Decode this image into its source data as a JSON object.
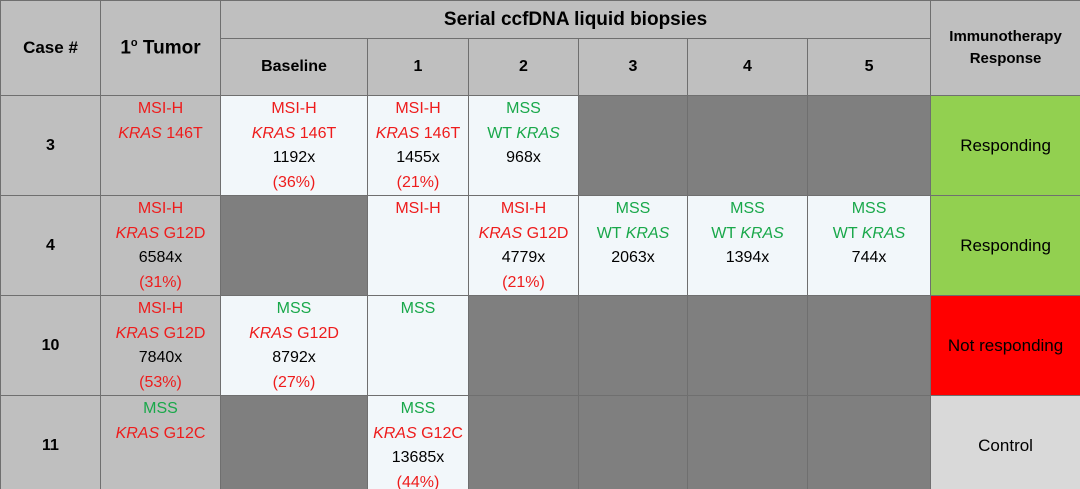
{
  "header": {
    "case": "Case #",
    "tumor": [
      {
        "text": "1"
      },
      {
        "text": "o",
        "sup": true
      },
      {
        "text": " Tumor"
      }
    ],
    "serial": "Serial ccfDNA liquid biopsies",
    "timepoints": [
      "Baseline",
      "1",
      "2",
      "3",
      "4",
      "5"
    ],
    "response": [
      "Immunotherapy",
      "Response"
    ]
  },
  "rows": [
    {
      "case": "3",
      "cells": [
        [
          {
            "color": "red",
            "parts": [
              {
                "text": "MSI-H"
              }
            ]
          },
          {
            "color": "red",
            "parts": [
              {
                "text": "KRAS",
                "italic": true
              },
              {
                "text": " 146T"
              }
            ]
          }
        ],
        [
          {
            "color": "red",
            "parts": [
              {
                "text": "MSI-H"
              }
            ]
          },
          {
            "color": "red",
            "parts": [
              {
                "text": "KRAS",
                "italic": true
              },
              {
                "text": " 146T"
              }
            ]
          },
          {
            "color": "black",
            "parts": [
              {
                "text": "1192x"
              }
            ]
          },
          {
            "color": "red",
            "parts": [
              {
                "text": "(36%)"
              }
            ]
          }
        ],
        [
          {
            "color": "red",
            "parts": [
              {
                "text": "MSI-H"
              }
            ]
          },
          {
            "color": "red",
            "parts": [
              {
                "text": "KRAS",
                "italic": true
              },
              {
                "text": " 146T"
              }
            ]
          },
          {
            "color": "black",
            "parts": [
              {
                "text": "1455x"
              }
            ]
          },
          {
            "color": "red",
            "parts": [
              {
                "text": "(21%)"
              }
            ]
          }
        ],
        [
          {
            "color": "green",
            "parts": [
              {
                "text": "MSS"
              }
            ]
          },
          {
            "color": "green",
            "parts": [
              {
                "text": "WT "
              },
              {
                "text": "KRAS",
                "italic": true
              }
            ]
          },
          {
            "color": "black",
            "parts": [
              {
                "text": "968x"
              }
            ]
          }
        ],
        null,
        null,
        null
      ],
      "response": {
        "text": "Responding",
        "color": "#92d050"
      }
    },
    {
      "case": "4",
      "cells": [
        [
          {
            "color": "red",
            "parts": [
              {
                "text": "MSI-H"
              }
            ]
          },
          {
            "color": "red",
            "parts": [
              {
                "text": "KRAS",
                "italic": true
              },
              {
                "text": " G12D"
              }
            ]
          },
          {
            "color": "black",
            "parts": [
              {
                "text": "6584x"
              }
            ]
          },
          {
            "color": "red",
            "parts": [
              {
                "text": "(31%)"
              }
            ]
          }
        ],
        null,
        [
          {
            "color": "red",
            "parts": [
              {
                "text": "MSI-H"
              }
            ]
          }
        ],
        [
          {
            "color": "red",
            "parts": [
              {
                "text": "MSI-H"
              }
            ]
          },
          {
            "color": "red",
            "parts": [
              {
                "text": "KRAS",
                "italic": true
              },
              {
                "text": " G12D"
              }
            ]
          },
          {
            "color": "black",
            "parts": [
              {
                "text": "4779x"
              }
            ]
          },
          {
            "color": "red",
            "parts": [
              {
                "text": "(21%)"
              }
            ]
          }
        ],
        [
          {
            "color": "green",
            "parts": [
              {
                "text": "MSS"
              }
            ]
          },
          {
            "color": "green",
            "parts": [
              {
                "text": "WT "
              },
              {
                "text": "KRAS",
                "italic": true
              }
            ]
          },
          {
            "color": "black",
            "parts": [
              {
                "text": "2063x"
              }
            ]
          }
        ],
        [
          {
            "color": "green",
            "parts": [
              {
                "text": "MSS"
              }
            ]
          },
          {
            "color": "green",
            "parts": [
              {
                "text": "WT "
              },
              {
                "text": "KRAS",
                "italic": true
              }
            ]
          },
          {
            "color": "black",
            "parts": [
              {
                "text": "1394x"
              }
            ]
          }
        ],
        [
          {
            "color": "green",
            "parts": [
              {
                "text": "MSS"
              }
            ]
          },
          {
            "color": "green",
            "parts": [
              {
                "text": "WT "
              },
              {
                "text": "KRAS",
                "italic": true
              }
            ]
          },
          {
            "color": "black",
            "parts": [
              {
                "text": "744x"
              }
            ]
          }
        ]
      ],
      "response": {
        "text": "Responding",
        "color": "#92d050"
      }
    },
    {
      "case": "10",
      "cells": [
        [
          {
            "color": "red",
            "parts": [
              {
                "text": "MSI-H"
              }
            ]
          },
          {
            "color": "red",
            "parts": [
              {
                "text": "KRAS",
                "italic": true
              },
              {
                "text": " G12D"
              }
            ]
          },
          {
            "color": "black",
            "parts": [
              {
                "text": "7840x"
              }
            ]
          },
          {
            "color": "red",
            "parts": [
              {
                "text": "(53%)"
              }
            ]
          }
        ],
        [
          {
            "color": "green",
            "parts": [
              {
                "text": "MSS"
              }
            ]
          },
          {
            "color": "red",
            "parts": [
              {
                "text": "KRAS",
                "italic": true
              },
              {
                "text": " G12D"
              }
            ]
          },
          {
            "color": "black",
            "parts": [
              {
                "text": "8792x"
              }
            ]
          },
          {
            "color": "red",
            "parts": [
              {
                "text": "(27%)"
              }
            ]
          }
        ],
        [
          {
            "color": "green",
            "parts": [
              {
                "text": "MSS"
              }
            ]
          }
        ],
        null,
        null,
        null,
        null
      ],
      "response": {
        "text": "Not responding",
        "color": "#ff0000"
      }
    },
    {
      "case": "11",
      "cells": [
        [
          {
            "color": "green",
            "parts": [
              {
                "text": "MSS"
              }
            ]
          },
          {
            "color": "red",
            "parts": [
              {
                "text": "KRAS",
                "italic": true
              },
              {
                "text": " G12C"
              }
            ]
          }
        ],
        null,
        [
          {
            "color": "green",
            "parts": [
              {
                "text": "MSS"
              }
            ]
          },
          {
            "color": "red",
            "parts": [
              {
                "text": "KRAS",
                "italic": true
              },
              {
                "text": " G12C"
              }
            ]
          },
          {
            "color": "black",
            "parts": [
              {
                "text": "13685x"
              }
            ]
          },
          {
            "color": "red",
            "parts": [
              {
                "text": "(44%)"
              }
            ]
          }
        ],
        null,
        null,
        null,
        null
      ],
      "response": {
        "text": "Control",
        "color": "#d9d9d9"
      }
    }
  ]
}
